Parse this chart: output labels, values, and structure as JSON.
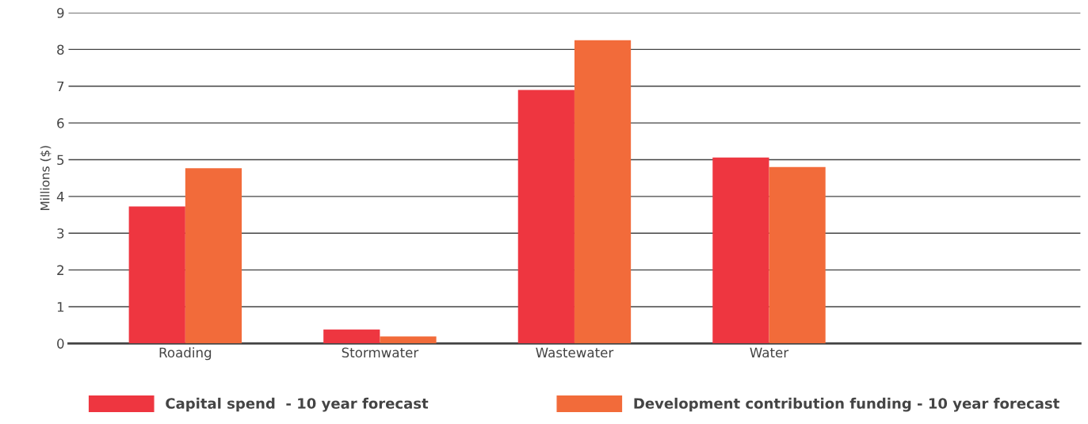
{
  "chart_data": {
    "type": "bar",
    "ylabel": "Millions ($)",
    "categories": [
      "Roading",
      "Stormwater",
      "Wastewater",
      "Water",
      null
    ],
    "series": [
      {
        "name": "Capital spend  - 10 year forecast",
        "color": "#ee3640",
        "values": [
          3.73,
          0.38,
          6.9,
          5.06,
          null
        ]
      },
      {
        "name": "Development contribution funding - 10 year forecast",
        "color": "#f26b3a",
        "values": [
          4.77,
          0.19,
          8.25,
          4.8,
          null
        ]
      }
    ],
    "ylim": [
      0,
      9
    ],
    "yticks": [
      0,
      1,
      2,
      3,
      4,
      5,
      6,
      7,
      8,
      9
    ],
    "grid": "y",
    "legend": "bottom"
  }
}
